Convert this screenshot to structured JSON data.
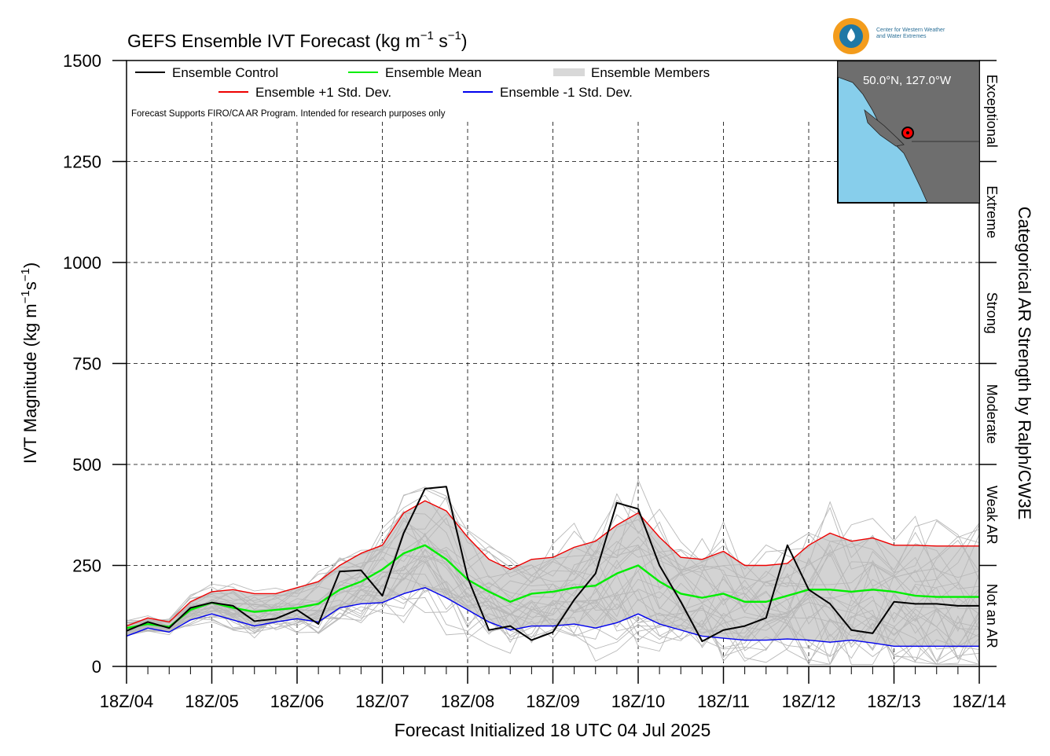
{
  "title": "GEFS Ensemble IVT Forecast (kg m",
  "title_sup1": "−1",
  "title_mid": " s",
  "title_sup2": "−1",
  "title_end": ")",
  "logo": {
    "line1": "Center for Western Weather",
    "line2": "and Water Extremes"
  },
  "inset": {
    "location": "50.0°N, 127.0°W"
  },
  "footnote": "Forecast Supports FIRO/CA AR Program. Intended for research purposes only",
  "right_axis_title": "Categorical AR Strength by Ralph/CW3E",
  "categories": [
    "Not an AR",
    "Weak AR",
    "Moderate",
    "Strong",
    "Extreme",
    "Exceptional"
  ],
  "colors": {
    "control": "#000000",
    "mean": "#00ee00",
    "plus": "#ee0000",
    "minus": "#0000ee",
    "members": "#b8b8b8",
    "spread": "#d3d3d3"
  },
  "chart_data": {
    "type": "line",
    "title": "GEFS Ensemble IVT Forecast (kg m−1 s−1)",
    "xlabel": "Forecast Initialized 18 UTC 04 Jul 2025",
    "ylabel": "IVT Magnitude (kg m−1s−1)",
    "ylim": [
      0,
      1500
    ],
    "yticks": [
      0,
      250,
      500,
      750,
      1000,
      1250,
      1500
    ],
    "xlim": [
      0,
      240
    ],
    "xtick_labels": [
      "18Z/04",
      "18Z/05",
      "18Z/06",
      "18Z/07",
      "18Z/08",
      "18Z/09",
      "18Z/10",
      "18Z/11",
      "18Z/12",
      "18Z/13",
      "18Z/14"
    ],
    "x_hours": [
      0,
      6,
      12,
      18,
      24,
      30,
      36,
      42,
      48,
      54,
      60,
      66,
      72,
      78,
      84,
      90,
      96,
      102,
      108,
      114,
      120,
      126,
      132,
      138,
      144,
      150,
      156,
      162,
      168,
      174,
      180,
      186,
      192,
      198,
      204,
      210,
      216,
      222,
      228,
      234,
      240
    ],
    "grid": true,
    "legend_position": "top-left",
    "series": [
      {
        "name": "Ensemble Control",
        "values": [
          88,
          110,
          95,
          145,
          158,
          150,
          112,
          118,
          140,
          105,
          235,
          238,
          175,
          330,
          440,
          445,
          220,
          90,
          100,
          65,
          85,
          165,
          230,
          405,
          390,
          250,
          160,
          62,
          90,
          100,
          120,
          300,
          190,
          155,
          90,
          82,
          160,
          155,
          155,
          150,
          150
        ]
      },
      {
        "name": "Ensemble Mean",
        "values": [
          95,
          105,
          98,
          140,
          158,
          145,
          135,
          140,
          145,
          155,
          190,
          210,
          240,
          280,
          300,
          265,
          215,
          185,
          160,
          180,
          185,
          195,
          200,
          230,
          250,
          210,
          180,
          170,
          180,
          160,
          160,
          175,
          190,
          190,
          185,
          190,
          185,
          175,
          172,
          172,
          172
        ]
      },
      {
        "name": "Ensemble +1 Std. Dev.",
        "values": [
          100,
          120,
          110,
          160,
          185,
          190,
          180,
          180,
          195,
          210,
          250,
          280,
          300,
          380,
          410,
          385,
          320,
          265,
          240,
          265,
          270,
          295,
          310,
          350,
          380,
          320,
          270,
          265,
          285,
          250,
          250,
          255,
          300,
          330,
          310,
          318,
          300,
          300,
          298,
          298,
          298
        ]
      },
      {
        "name": "Ensemble -1 Std. Dev.",
        "values": [
          75,
          95,
          85,
          115,
          130,
          115,
          100,
          110,
          118,
          110,
          145,
          155,
          158,
          180,
          195,
          170,
          140,
          110,
          90,
          100,
          100,
          105,
          95,
          108,
          130,
          105,
          90,
          75,
          70,
          65,
          65,
          68,
          65,
          60,
          65,
          58,
          50,
          50,
          50,
          50,
          50
        ]
      },
      {
        "name": "Ensemble Members",
        "values": []
      }
    ]
  }
}
